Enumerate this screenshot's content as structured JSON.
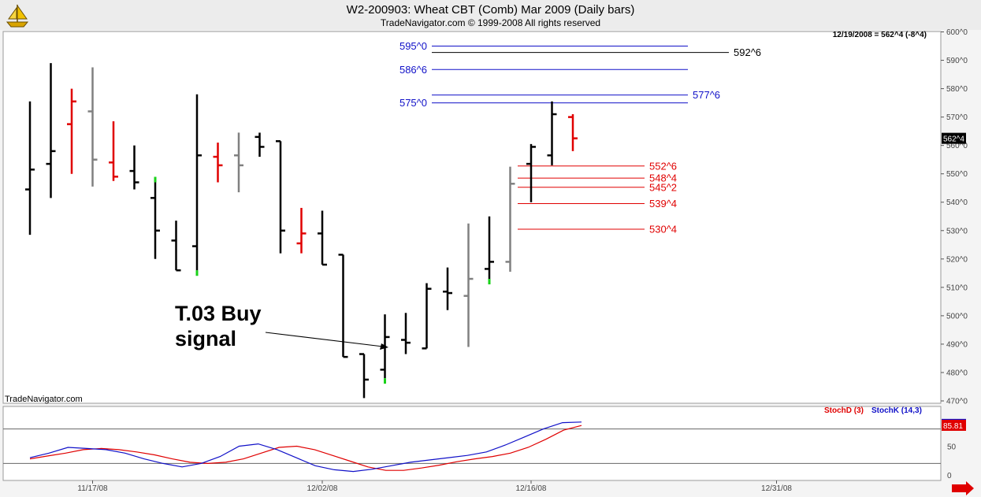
{
  "header": {
    "title": "W2-200903:  Wheat CBT (Comb) Mar 2009  (Daily bars)",
    "copyright": "TradeNavigator.com © 1999-2008 All rights reserved"
  },
  "status": "12/19/2008 = 562^4 (-8^4)",
  "watermark": "TradeNavigator.com",
  "colors": {
    "up": "#000000",
    "down": "#e00000",
    "grey": "#808080",
    "signal": "#19d219",
    "resistance": "#1010c8",
    "support": "#e00000",
    "stochD": "#e00000",
    "stochK": "#1010c8",
    "last_price_box": "#000000",
    "stoch_box": "#e00000"
  },
  "icons": {
    "logo": "sailing-ship-icon",
    "scroll": "red-arrow-right-icon"
  },
  "callout": {
    "line1": "T.03 Buy",
    "line2": "signal"
  },
  "chart_data": {
    "type": "ohlc",
    "price_axis": {
      "ylim": [
        465,
        601
      ],
      "ticks": [
        470,
        480,
        490,
        500,
        510,
        520,
        530,
        540,
        550,
        560,
        570,
        580,
        590,
        600
      ],
      "tick_labels": [
        "470^0",
        "480^0",
        "490^0",
        "500^0",
        "510^0",
        "520^0",
        "530^0",
        "540^0",
        "550^0",
        "560^0",
        "570^0",
        "580^0",
        "590^0",
        "600^0"
      ],
      "last_price_label": "562^4",
      "last_price": 562.5
    },
    "x_axis": {
      "tick_labels": [
        "11/17/08",
        "12/02/08",
        "12/16/08",
        "12/31/08"
      ],
      "tick_bar_index": [
        3,
        14,
        24,
        35
      ]
    },
    "bars": [
      {
        "high": 575.5,
        "low": 528.5,
        "open": 544.5,
        "close": 551.5,
        "color": "up"
      },
      {
        "high": 589.0,
        "low": 541.5,
        "open": 553.5,
        "close": 558.0,
        "color": "up"
      },
      {
        "high": 580.0,
        "low": 550.0,
        "open": 567.5,
        "close": 575.5,
        "color": "down"
      },
      {
        "high": 587.5,
        "low": 545.5,
        "open": 572.0,
        "close": 555.0,
        "color": "grey"
      },
      {
        "high": 568.5,
        "low": 547.5,
        "open": 554.0,
        "close": 549.0,
        "color": "down"
      },
      {
        "high": 560.0,
        "low": 544.5,
        "open": 551.0,
        "close": 547.0,
        "color": "up"
      },
      {
        "high": 547.0,
        "low": 520.0,
        "open": 541.5,
        "close": 530.0,
        "color": "up",
        "signal_high": true
      },
      {
        "high": 533.5,
        "low": 516.0,
        "open": 526.5,
        "close": 516.0,
        "color": "up"
      },
      {
        "high": 578.0,
        "low": 516.0,
        "open": 524.5,
        "close": 556.5,
        "color": "up",
        "signal_low": true
      },
      {
        "high": 561.0,
        "low": 547.0,
        "open": 556.0,
        "close": 553.0,
        "color": "down"
      },
      {
        "high": 564.5,
        "low": 543.5,
        "open": 556.5,
        "close": 553.0,
        "color": "grey"
      },
      {
        "high": 564.5,
        "low": 556.0,
        "open": 563.0,
        "close": 559.5,
        "color": "up"
      },
      {
        "high": 561.5,
        "low": 522.0,
        "open": 561.5,
        "close": 530.0,
        "color": "up"
      },
      {
        "high": 538.0,
        "low": 522.0,
        "open": 525.5,
        "close": 529.0,
        "color": "down"
      },
      {
        "high": 537.0,
        "low": 518.0,
        "open": 529.0,
        "close": 518.0,
        "color": "up"
      },
      {
        "high": 521.5,
        "low": 485.5,
        "open": 521.5,
        "close": 485.5,
        "color": "up"
      },
      {
        "high": 486.5,
        "low": 471.0,
        "open": 486.5,
        "close": 477.5,
        "color": "up"
      },
      {
        "high": 500.5,
        "low": 478.0,
        "open": 481.0,
        "close": 492.5,
        "color": "up",
        "signal_low": true
      },
      {
        "high": 501.0,
        "low": 486.5,
        "open": 491.5,
        "close": 490.5,
        "color": "up"
      },
      {
        "high": 511.5,
        "low": 488.5,
        "open": 488.5,
        "close": 509.5,
        "color": "up"
      },
      {
        "high": 517.0,
        "low": 502.0,
        "open": 508.5,
        "close": 508.0,
        "color": "up"
      },
      {
        "high": 532.5,
        "low": 489.0,
        "open": 507.0,
        "close": 513.0,
        "color": "grey"
      },
      {
        "high": 535.0,
        "low": 513.0,
        "open": 516.5,
        "close": 519.0,
        "color": "up",
        "signal_low": true
      },
      {
        "high": 552.5,
        "low": 515.5,
        "open": 519.0,
        "close": 546.5,
        "color": "grey"
      },
      {
        "high": 560.5,
        "low": 540.0,
        "open": 553.5,
        "close": 559.5,
        "color": "up"
      },
      {
        "high": 575.5,
        "low": 553.0,
        "open": 556.5,
        "close": 571.0,
        "color": "up"
      },
      {
        "high": 571.0,
        "low": 558.0,
        "open": 570.0,
        "close": 562.5,
        "color": "down"
      }
    ],
    "levels": [
      {
        "label": "595^0",
        "value": 595.0,
        "color": "resistance",
        "label_side": "left"
      },
      {
        "label": "592^6",
        "value": 592.75,
        "color": "black",
        "label_side": "right"
      },
      {
        "label": "586^6",
        "value": 586.75,
        "color": "resistance",
        "label_side": "left"
      },
      {
        "label": "577^6",
        "value": 577.75,
        "color": "resistance",
        "label_side": "right"
      },
      {
        "label": "575^0",
        "value": 575.0,
        "color": "resistance",
        "label_side": "left"
      },
      {
        "label": "552^6",
        "value": 552.75,
        "color": "support",
        "label_side": "right"
      },
      {
        "label": "548^4",
        "value": 548.5,
        "color": "support",
        "label_side": "right"
      },
      {
        "label": "545^2",
        "value": 545.25,
        "color": "support",
        "label_side": "right"
      },
      {
        "label": "539^4",
        "value": 539.5,
        "color": "support",
        "label_side": "right"
      },
      {
        "label": "530^4",
        "value": 530.5,
        "color": "support",
        "label_side": "right"
      }
    ],
    "stochastic": {
      "ylim": [
        0,
        100
      ],
      "ticks": [
        0,
        50
      ],
      "tick_labels": [
        "0",
        "50"
      ],
      "levels": [
        20,
        80
      ],
      "legend": [
        {
          "name": "StochD (3)",
          "color": "stochD"
        },
        {
          "name": "StochK (14,3)",
          "color": "stochK"
        }
      ],
      "last_value_label": "85.81",
      "stochD": [
        28,
        33,
        38,
        44,
        46,
        44,
        40,
        35,
        28,
        22,
        20,
        22,
        28,
        38,
        48,
        50,
        44,
        34,
        24,
        14,
        8,
        8,
        12,
        17,
        23,
        28,
        32,
        38,
        48,
        62,
        78,
        86
      ],
      "stochK": [
        30,
        38,
        48,
        46,
        44,
        38,
        28,
        20,
        14,
        20,
        32,
        50,
        54,
        44,
        30,
        16,
        9,
        6,
        10,
        16,
        22,
        26,
        30,
        34,
        40,
        52,
        66,
        80,
        91,
        92
      ]
    }
  }
}
